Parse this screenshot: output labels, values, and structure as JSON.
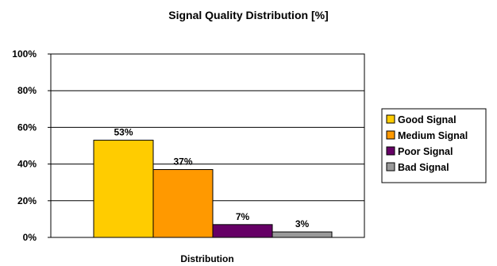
{
  "chart_data": {
    "type": "bar",
    "title": "Signal Quality Distribution [%]",
    "xlabel": "Distribution",
    "ylabel": "",
    "ylim": [
      0,
      100
    ],
    "yticks": [
      "0%",
      "20%",
      "40%",
      "60%",
      "80%",
      "100%"
    ],
    "ytick_values": [
      0,
      20,
      40,
      60,
      80,
      100
    ],
    "grid": true,
    "legend_position": "right",
    "series": [
      {
        "name": "Good Signal",
        "value": 53,
        "label": "53%",
        "color": "#ffcc00"
      },
      {
        "name": "Medium Signal",
        "value": 37,
        "label": "37%",
        "color": "#ff9900"
      },
      {
        "name": "Poor Signal",
        "value": 7,
        "label": "7%",
        "color": "#660066"
      },
      {
        "name": "Bad Signal",
        "value": 3,
        "label": "3%",
        "color": "#999999"
      }
    ]
  }
}
